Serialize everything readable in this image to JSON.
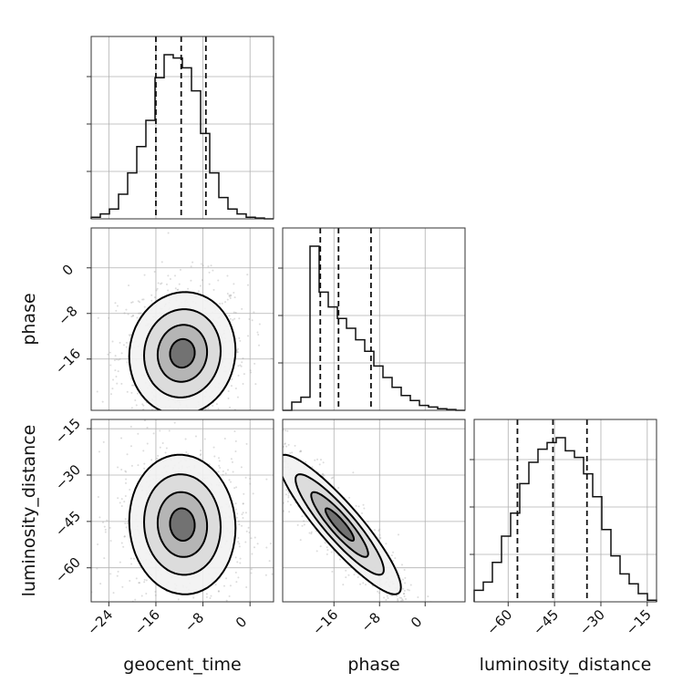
{
  "chart_data": {
    "type": "corner",
    "parameters": [
      "geocent_time",
      "phase",
      "luminosity_distance"
    ],
    "ranges": {
      "geocent_time": [
        -27,
        4
      ],
      "phase": [
        -25,
        7
      ],
      "luminosity_distance": [
        -71,
        -12
      ]
    },
    "tick_values": {
      "geocent_time": [
        -24,
        -16,
        -8,
        0
      ],
      "phase": [
        -16,
        -8,
        0
      ],
      "luminosity_distance": [
        -60,
        -45,
        -30,
        -15
      ]
    },
    "tick_labels": {
      "geocent_time": [
        "−24",
        "−16",
        "−8",
        "0"
      ],
      "phase": [
        "−16",
        "−8",
        "0"
      ],
      "luminosity_distance": [
        "−60",
        "−45",
        "−30",
        "−15"
      ]
    },
    "x_axis_labels": [
      "geocent_time",
      "phase",
      "luminosity_distance"
    ],
    "y_axis_labels": [
      "phase",
      "luminosity_distance"
    ],
    "histograms": [
      {
        "parameter": "geocent_time",
        "bin_edges": [
          -27,
          -25.45,
          -23.9,
          -22.35,
          -20.8,
          -19.25,
          -17.7,
          -16.15,
          -14.6,
          -13.05,
          -11.5,
          -9.95,
          -8.4,
          -6.85,
          -5.3,
          -3.75,
          -2.2,
          -0.65,
          0.9,
          2.45,
          4
        ],
        "counts": [
          0.01,
          0.03,
          0.06,
          0.15,
          0.28,
          0.44,
          0.6,
          0.86,
          1.0,
          0.98,
          0.92,
          0.78,
          0.52,
          0.28,
          0.13,
          0.06,
          0.03,
          0.01,
          0.005,
          0.0
        ],
        "quantiles": [
          -16.0,
          -11.7,
          -7.5
        ]
      },
      {
        "parameter": "phase",
        "bin_edges": [
          -25,
          -23.4,
          -21.8,
          -20.2,
          -18.6,
          -17.0,
          -15.4,
          -13.8,
          -12.2,
          -10.6,
          -9.0,
          -7.4,
          -5.8,
          -4.2,
          -2.6,
          -1.0,
          0.6,
          2.2,
          3.8,
          5.4,
          7
        ],
        "counts": [
          0.0,
          0.05,
          0.08,
          1.0,
          0.72,
          0.63,
          0.56,
          0.5,
          0.43,
          0.36,
          0.27,
          0.2,
          0.14,
          0.09,
          0.06,
          0.03,
          0.02,
          0.01,
          0.005,
          0.0
        ],
        "quantiles": [
          -18.4,
          -15.2,
          -9.5
        ]
      },
      {
        "parameter": "luminosity_distance",
        "bin_edges": [
          -71,
          -68.05,
          -65.1,
          -62.15,
          -59.2,
          -56.25,
          -53.3,
          -50.35,
          -47.4,
          -44.45,
          -41.5,
          -38.55,
          -35.6,
          -32.65,
          -29.7,
          -26.75,
          -23.8,
          -20.85,
          -17.9,
          -14.95,
          -12
        ],
        "counts": [
          0.07,
          0.12,
          0.24,
          0.4,
          0.54,
          0.72,
          0.85,
          0.93,
          0.97,
          1.0,
          0.92,
          0.88,
          0.78,
          0.64,
          0.44,
          0.28,
          0.17,
          0.11,
          0.05,
          0.01
        ],
        "quantiles": [
          -57,
          -45.5,
          -34.5
        ]
      }
    ],
    "pairs": [
      {
        "x": "geocent_time",
        "y": "phase",
        "center": [
          -11.5,
          -15.0
        ],
        "spread": [
          4.2,
          5.0
        ],
        "corr": 0.05
      },
      {
        "x": "geocent_time",
        "y": "luminosity_distance",
        "center": [
          -11.5,
          -46.0
        ],
        "spread": [
          4.2,
          10.5
        ],
        "corr": -0.05
      },
      {
        "x": "phase",
        "y": "luminosity_distance",
        "center": [
          -15.0,
          -46.0
        ],
        "spread": [
          5.0,
          10.5
        ],
        "corr": -0.9
      }
    ]
  }
}
